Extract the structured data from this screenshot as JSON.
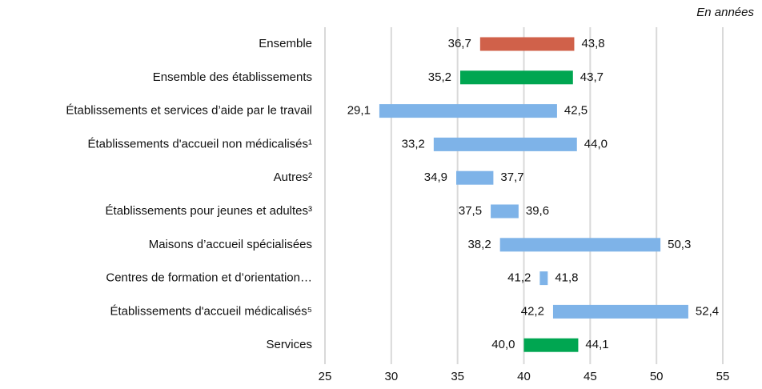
{
  "chart_data": {
    "type": "range_bar",
    "unit_label": "En années",
    "categories": [
      "Ensemble",
      "Ensemble des établissements",
      "Établissements et services d’aide par le travail",
      "Établissements d'accueil non médicalisés¹",
      "Autres²",
      "Établissements pour jeunes et adultes³",
      "Maisons d’accueil spécialisées",
      "Centres de formation et d’orientation…",
      "Établissements d'accueil médicalisés⁵",
      "Services"
    ],
    "values": [
      [
        36.7,
        43.8
      ],
      [
        35.2,
        43.7
      ],
      [
        29.1,
        42.5
      ],
      [
        33.2,
        44.0
      ],
      [
        34.9,
        37.7
      ],
      [
        37.5,
        39.6
      ],
      [
        38.2,
        50.3
      ],
      [
        41.2,
        41.8
      ],
      [
        42.2,
        52.4
      ],
      [
        40.0,
        44.1
      ]
    ],
    "value_labels": [
      [
        "36,7",
        "43,8"
      ],
      [
        "35,2",
        "43,7"
      ],
      [
        "29,1",
        "42,5"
      ],
      [
        "33,2",
        "44,0"
      ],
      [
        "34,9",
        "37,7"
      ],
      [
        "37,5",
        "39,6"
      ],
      [
        "38,2",
        "50,3"
      ],
      [
        "41,2",
        "41,8"
      ],
      [
        "42,2",
        "52,4"
      ],
      [
        "40,0",
        "44,1"
      ]
    ],
    "colors": [
      "#d0614a",
      "#00a651",
      "#7eb3e8",
      "#7eb3e8",
      "#7eb3e8",
      "#7eb3e8",
      "#7eb3e8",
      "#7eb3e8",
      "#7eb3e8",
      "#00a651"
    ],
    "xlim": [
      25,
      55
    ],
    "xticks": [
      25,
      30,
      35,
      40,
      45,
      50,
      55
    ],
    "grid": true
  }
}
